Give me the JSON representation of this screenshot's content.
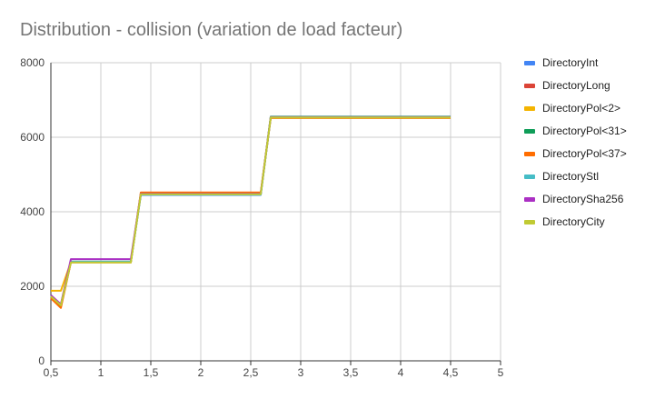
{
  "chart_data": {
    "type": "line",
    "title": "Distribution - collision (variation de load facteur)",
    "xlabel": "",
    "ylabel": "",
    "xlim": [
      0.5,
      5
    ],
    "ylim": [
      0,
      8000
    ],
    "x_ticks": [
      "0,5",
      "1",
      "1,5",
      "2",
      "2,5",
      "3",
      "3,5",
      "4",
      "4,5",
      "5"
    ],
    "y_ticks": [
      "0",
      "2000",
      "4000",
      "6000",
      "8000"
    ],
    "grid": true,
    "legend_position": "right",
    "x": [
      0.5,
      0.6,
      0.7,
      0.8,
      0.9,
      1.0,
      1.1,
      1.2,
      1.3,
      1.4,
      1.5,
      1.6,
      1.7,
      1.8,
      1.9,
      2.0,
      2.1,
      2.2,
      2.3,
      2.4,
      2.5,
      2.6,
      2.7,
      2.8,
      2.9,
      3.0,
      3.1,
      3.2,
      3.3,
      3.4,
      3.5,
      3.6,
      3.7,
      3.8,
      3.9,
      4.0,
      4.1,
      4.2,
      4.3,
      4.4,
      4.5
    ],
    "series": [
      {
        "name": "DirectoryInt",
        "color": "#4285f4",
        "values": [
          1750,
          1500,
          2650,
          2650,
          2650,
          2650,
          2650,
          2650,
          2650,
          4450,
          4450,
          4450,
          4450,
          4450,
          4450,
          4450,
          4450,
          4450,
          4450,
          4450,
          4450,
          4450,
          6540,
          6540,
          6540,
          6540,
          6540,
          6540,
          6540,
          6540,
          6540,
          6540,
          6540,
          6540,
          6540,
          6540,
          6540,
          6540,
          6540,
          6540,
          6540
        ]
      },
      {
        "name": "DirectoryLong",
        "color": "#db4437",
        "values": [
          1700,
          1450,
          2650,
          2650,
          2650,
          2650,
          2650,
          2650,
          2650,
          4480,
          4480,
          4480,
          4480,
          4480,
          4480,
          4480,
          4480,
          4480,
          4480,
          4480,
          4480,
          4480,
          6530,
          6530,
          6530,
          6530,
          6530,
          6530,
          6530,
          6530,
          6530,
          6530,
          6530,
          6530,
          6530,
          6530,
          6530,
          6530,
          6530,
          6530,
          6530
        ]
      },
      {
        "name": "DirectoryPol<2>",
        "color": "#f4b400",
        "values": [
          1880,
          1880,
          2650,
          2650,
          2650,
          2650,
          2650,
          2650,
          2650,
          4500,
          4500,
          4500,
          4500,
          4500,
          4500,
          4500,
          4500,
          4500,
          4500,
          4500,
          4500,
          4500,
          6520,
          6520,
          6520,
          6520,
          6520,
          6520,
          6520,
          6520,
          6520,
          6520,
          6520,
          6520,
          6520,
          6520,
          6520,
          6520,
          6520,
          6520,
          6520
        ]
      },
      {
        "name": "DirectoryPol<31>",
        "color": "#0f9d58",
        "values": [
          1720,
          1480,
          2660,
          2660,
          2660,
          2660,
          2660,
          2660,
          2660,
          4470,
          4470,
          4470,
          4470,
          4470,
          4470,
          4470,
          4470,
          4470,
          4470,
          4470,
          4470,
          4470,
          6550,
          6550,
          6550,
          6550,
          6550,
          6550,
          6550,
          6550,
          6550,
          6550,
          6550,
          6550,
          6550,
          6550,
          6550,
          6550,
          6550,
          6550,
          6550
        ]
      },
      {
        "name": "DirectoryPol<37>",
        "color": "#ff6d00",
        "values": [
          1680,
          1420,
          2640,
          2640,
          2640,
          2640,
          2640,
          2640,
          2640,
          4520,
          4520,
          4520,
          4520,
          4520,
          4520,
          4520,
          4520,
          4520,
          4520,
          4520,
          4520,
          4520,
          6520,
          6520,
          6520,
          6520,
          6520,
          6520,
          6520,
          6520,
          6520,
          6520,
          6520,
          6520,
          6520,
          6520,
          6520,
          6520,
          6520,
          6520,
          6520
        ]
      },
      {
        "name": "DirectoryStl",
        "color": "#46bdc6",
        "values": [
          1740,
          1500,
          2660,
          2660,
          2660,
          2660,
          2660,
          2660,
          2660,
          4460,
          4460,
          4460,
          4460,
          4460,
          4460,
          4460,
          4460,
          4460,
          4460,
          4460,
          4460,
          4460,
          6540,
          6540,
          6540,
          6540,
          6540,
          6540,
          6540,
          6540,
          6540,
          6540,
          6540,
          6540,
          6540,
          6540,
          6540,
          6540,
          6540,
          6540,
          6540
        ]
      },
      {
        "name": "DirectorySha256",
        "color": "#ab30c4",
        "values": [
          1760,
          1520,
          2730,
          2730,
          2730,
          2730,
          2730,
          2730,
          2730,
          4480,
          4480,
          4480,
          4480,
          4480,
          4480,
          4480,
          4480,
          4480,
          4480,
          4480,
          4480,
          4480,
          6540,
          6540,
          6540,
          6540,
          6540,
          6540,
          6540,
          6540,
          6540,
          6540,
          6540,
          6540,
          6540,
          6540,
          6540,
          6540,
          6540,
          6540,
          6540
        ]
      },
      {
        "name": "DirectoryCity",
        "color": "#c0ca33",
        "values": [
          1730,
          1490,
          2640,
          2640,
          2640,
          2640,
          2640,
          2640,
          2640,
          4470,
          4470,
          4470,
          4470,
          4470,
          4470,
          4470,
          4470,
          4470,
          4470,
          4470,
          4470,
          4470,
          6530,
          6530,
          6530,
          6530,
          6530,
          6530,
          6530,
          6530,
          6530,
          6530,
          6530,
          6530,
          6530,
          6530,
          6530,
          6530,
          6530,
          6530,
          6530
        ]
      }
    ]
  }
}
